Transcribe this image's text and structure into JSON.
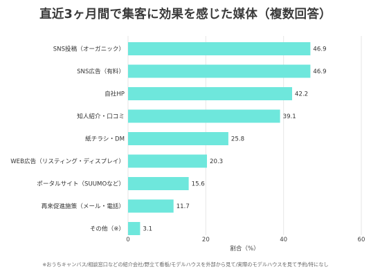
{
  "chart_data": {
    "type": "bar",
    "orientation": "horizontal",
    "title": "直近3ヶ月間で集客に効果を感じた媒体（複数回答）",
    "xlabel": "割合（%）",
    "ylabel": "",
    "xlim": [
      0,
      60
    ],
    "xticks": [
      0,
      20,
      40,
      60
    ],
    "grid": true,
    "bar_color": "#6ee7dc",
    "categories": [
      "SNS投稿（オーガニック）",
      "SNS広告（有料）",
      "自社HP",
      "知人紹介・口コミ",
      "紙チラシ・DM",
      "WEB広告（リスティング・ディスプレイ）",
      "ポータルサイト（SUUMOなど）",
      "再来促進施策（メール・電話）",
      "その他（※）"
    ],
    "values": [
      46.9,
      46.9,
      42.2,
      39.1,
      25.8,
      20.3,
      15.6,
      11.7,
      3.1
    ],
    "value_labels": [
      "46.9",
      "46.9",
      "42.2",
      "39.1",
      "25.8",
      "20.3",
      "15.6",
      "11.7",
      "3.1"
    ],
    "tick_labels": [
      "0",
      "20",
      "40",
      "60"
    ]
  },
  "footnote": "※おうちキャンバス/相談窓口などの紹介会社/野立て看板/モデルハウスを外部から見て/実際のモデルハウスを見て予約/特になし"
}
